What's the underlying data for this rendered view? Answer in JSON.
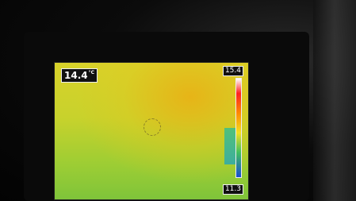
{
  "screen": {
    "reading": {
      "value": "14.4",
      "unit": "°C"
    },
    "scale": {
      "max": "15.4",
      "min": "11.3"
    }
  }
}
